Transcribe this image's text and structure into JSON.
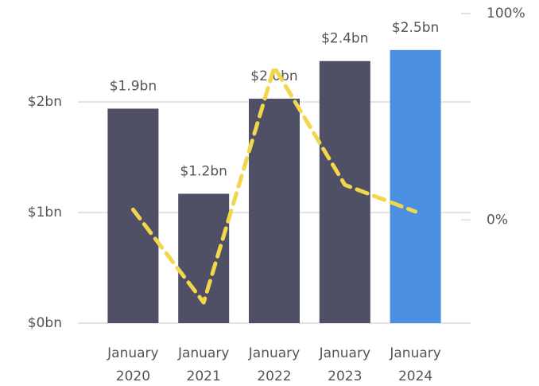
{
  "chart_data": {
    "type": "combo",
    "categories": [
      "January 2020",
      "January 2021",
      "January 2022",
      "January 2023",
      "January 2024"
    ],
    "series": [
      {
        "type": "bar",
        "values": [
          1.94,
          1.17,
          2.03,
          2.37,
          2.47
        ],
        "value_labels": [
          "$1.9bn",
          "$1.2bn",
          "$2.0bn",
          "$2.4bn",
          "$2.5bn"
        ],
        "colors": [
          "#4f5065",
          "#4f5065",
          "#4f5065",
          "#4f5065",
          "#4a8fe0"
        ]
      },
      {
        "type": "line",
        "axis": "y2",
        "values": [
          5,
          -40,
          74,
          17,
          4
        ],
        "color": "#f2d64b"
      }
    ],
    "ylim": [
      0,
      2.8
    ],
    "yticks": [
      {
        "value": 0,
        "label": "$0bn"
      },
      {
        "value": 1,
        "label": "$1bn"
      },
      {
        "value": 2,
        "label": "$2bn"
      }
    ],
    "y2lim": [
      -50,
      100
    ],
    "y2ticks": [
      {
        "value": 0,
        "label": "0%"
      },
      {
        "value": 100,
        "label": "100%"
      }
    ],
    "grid": true
  }
}
